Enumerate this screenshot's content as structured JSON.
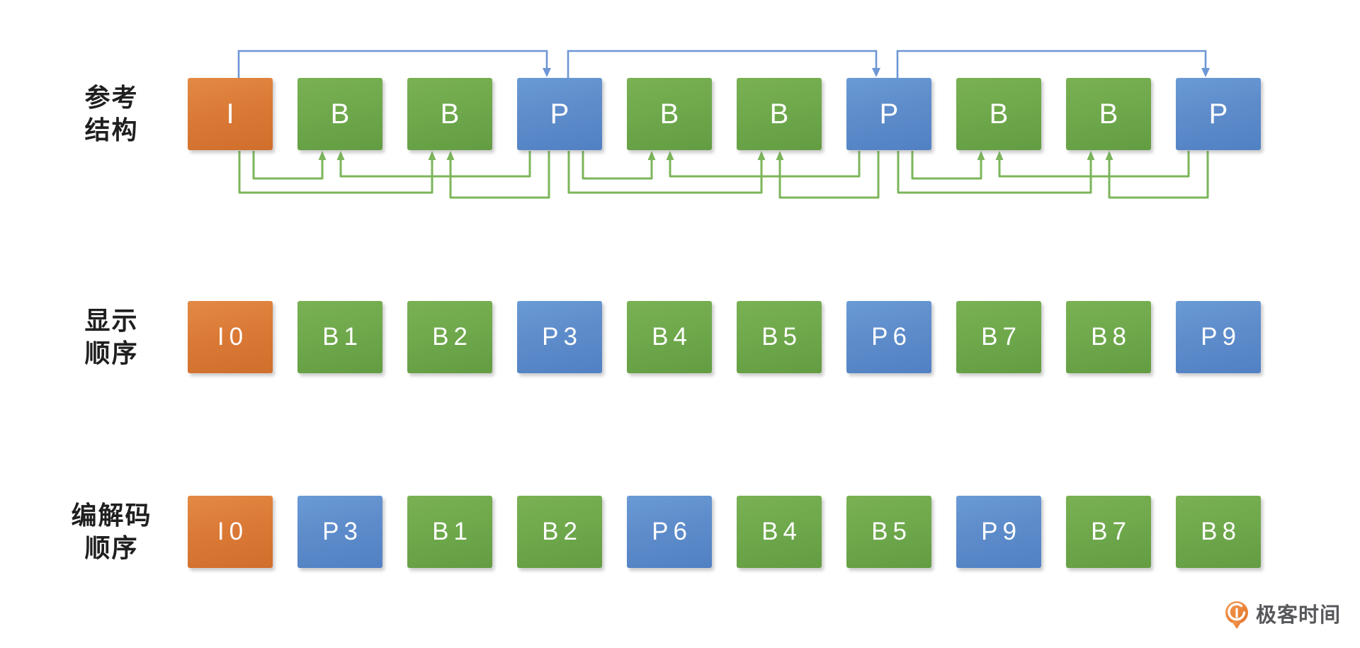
{
  "rows": [
    {
      "label_lines": [
        "参考",
        "结构"
      ],
      "boxes": [
        {
          "label": "I",
          "type": "I"
        },
        {
          "label": "B",
          "type": "B"
        },
        {
          "label": "B",
          "type": "B"
        },
        {
          "label": "P",
          "type": "P"
        },
        {
          "label": "B",
          "type": "B"
        },
        {
          "label": "B",
          "type": "B"
        },
        {
          "label": "P",
          "type": "P"
        },
        {
          "label": "B",
          "type": "B"
        },
        {
          "label": "B",
          "type": "B"
        },
        {
          "label": "P",
          "type": "P"
        }
      ]
    },
    {
      "label_lines": [
        "显示",
        "顺序"
      ],
      "boxes": [
        {
          "label": "I0",
          "type": "I"
        },
        {
          "label": "B1",
          "type": "B"
        },
        {
          "label": "B2",
          "type": "B"
        },
        {
          "label": "P3",
          "type": "P"
        },
        {
          "label": "B4",
          "type": "B"
        },
        {
          "label": "B5",
          "type": "B"
        },
        {
          "label": "P6",
          "type": "P"
        },
        {
          "label": "B7",
          "type": "B"
        },
        {
          "label": "B8",
          "type": "B"
        },
        {
          "label": "P9",
          "type": "P"
        }
      ]
    },
    {
      "label_lines": [
        "编解码",
        "顺序"
      ],
      "boxes": [
        {
          "label": "I0",
          "type": "I"
        },
        {
          "label": "P3",
          "type": "P"
        },
        {
          "label": "B1",
          "type": "B"
        },
        {
          "label": "B2",
          "type": "B"
        },
        {
          "label": "P6",
          "type": "P"
        },
        {
          "label": "B4",
          "type": "B"
        },
        {
          "label": "B5",
          "type": "B"
        },
        {
          "label": "P9",
          "type": "P"
        },
        {
          "label": "B7",
          "type": "B"
        },
        {
          "label": "B8",
          "type": "B"
        }
      ]
    }
  ],
  "arrows": {
    "blue_arcs": [
      {
        "from": 0,
        "to": 3
      },
      {
        "from": 3,
        "to": 6
      },
      {
        "from": 6,
        "to": 9
      }
    ],
    "green_links": [
      {
        "ref": 0,
        "b": 1
      },
      {
        "ref": 0,
        "b": 2
      },
      {
        "ref": 3,
        "b": 1
      },
      {
        "ref": 3,
        "b": 2
      },
      {
        "ref": 3,
        "b": 4
      },
      {
        "ref": 3,
        "b": 5
      },
      {
        "ref": 6,
        "b": 4
      },
      {
        "ref": 6,
        "b": 5
      },
      {
        "ref": 6,
        "b": 7
      },
      {
        "ref": 6,
        "b": 8
      },
      {
        "ref": 9,
        "b": 7
      },
      {
        "ref": 9,
        "b": 8
      }
    ]
  },
  "colors": {
    "i_frame": "#db7a37",
    "b_frame": "#6fa94c",
    "p_frame": "#5e8ccb",
    "green_arrow": "#7cb55b",
    "blue_arrow": "#6d96d5",
    "label_text": "#1f1f1f",
    "logo_text": "#57585b",
    "logo_orange": "#ec7f2f"
  },
  "logo": {
    "text": "极客时间"
  }
}
